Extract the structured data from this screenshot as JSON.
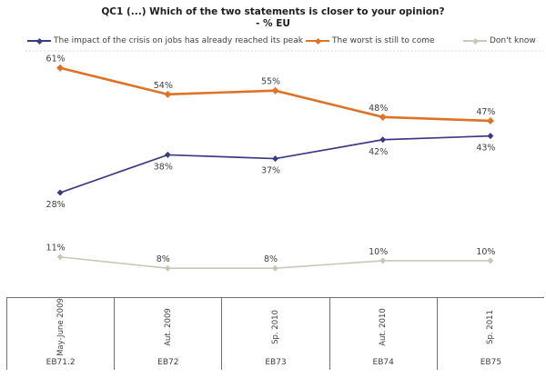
{
  "title": {
    "line1": "QC1 (...) Which of the two statements is closer to your opinion?",
    "line2": "- % EU"
  },
  "colors": {
    "peak_line": "#3B3B82",
    "worst_line": "#DF7226",
    "dont_know_line": "#C8C8B6",
    "data_label_text": "#3f3f3f",
    "axis_border": "#6f6f6f",
    "plot_top_border": "#d8d8d8"
  },
  "chart_data": {
    "type": "line",
    "title": "QC1 (...) Which of the two statements is closer to your opinion? - % EU",
    "legend_position": "top",
    "grid": "off",
    "value_suffix": "%",
    "ylim": [
      0,
      65
    ],
    "categories": [
      {
        "period": "May-June 2009",
        "study": "EB71.2"
      },
      {
        "period": "Aut. 2009",
        "study": "EB72"
      },
      {
        "period": "Sp. 2010",
        "study": "EB73"
      },
      {
        "period": "Aut. 2010",
        "study": "EB74"
      },
      {
        "period": "Sp. 2011",
        "study": "EB75"
      }
    ],
    "series": [
      {
        "name": "The impact of the crisis on jobs has already reached its peak",
        "values": [
          28,
          38,
          37,
          42,
          43
        ],
        "color": "#3B3B82",
        "stroke_width": 1.7,
        "label_position": "below"
      },
      {
        "name": "The worst is still to come",
        "values": [
          61,
          54,
          55,
          48,
          47
        ],
        "color": "#DF7226",
        "stroke_width": 2.6,
        "label_position": "above"
      },
      {
        "name": "Don't know",
        "values": [
          11,
          8,
          8,
          10,
          10
        ],
        "color": "#C8C8B6",
        "stroke_width": 1.6,
        "label_position": "above"
      }
    ]
  }
}
